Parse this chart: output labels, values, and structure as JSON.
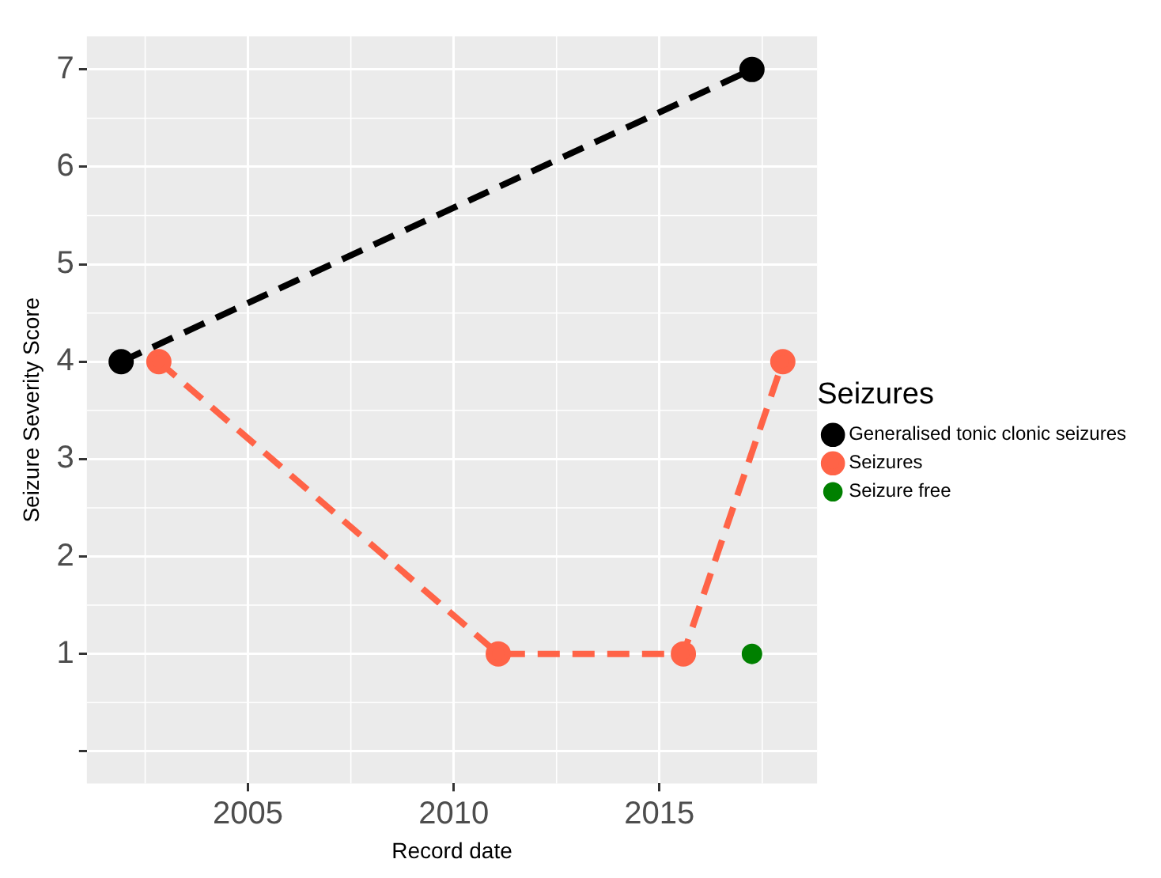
{
  "chart_data": {
    "type": "line",
    "xlabel": "Record date",
    "ylabel": "Seizure Severity Score",
    "legend_title": "Seizures",
    "xlim": [
      "2001-02",
      "2018-11"
    ],
    "xticks": [
      "2005",
      "2010",
      "2015"
    ],
    "ylim": [
      -0.33,
      7.34
    ],
    "yticks": [
      {
        "value": 0,
        "label": null
      },
      1,
      2,
      3,
      4,
      5,
      6,
      7
    ],
    "grid": true,
    "legend": "right",
    "marker": "circle",
    "line_style": "dashed",
    "series": [
      {
        "name": "Generalised tonic clonic seizures",
        "color": "#000000",
        "x": [
          "2001-12",
          "2017-04"
        ],
        "values": [
          4,
          7
        ]
      },
      {
        "name": "Seizures",
        "color": "#ff6347",
        "x": [
          "2002-11",
          "2011-02",
          "2015-08",
          "2018-01"
        ],
        "values": [
          4,
          1,
          1,
          4
        ]
      },
      {
        "name": "Seizure free",
        "type": "scatter",
        "color": "#008000",
        "x": [
          "2017-04"
        ],
        "values": [
          1
        ]
      }
    ]
  }
}
